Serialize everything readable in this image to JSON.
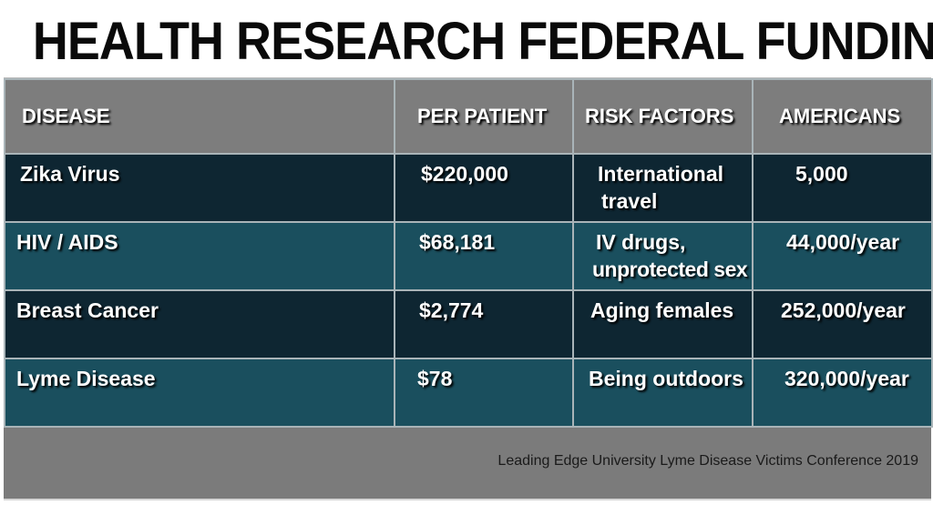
{
  "title": "HEALTH RESEARCH FEDERAL FUNDING",
  "table": {
    "headers": [
      "DISEASE",
      "PER PATIENT",
      "RISK FACTORS",
      "AMERICANS"
    ],
    "rows": [
      {
        "disease": "Zika Virus",
        "per_patient": "$220,000",
        "risk_line1": "International",
        "risk_line2": "travel",
        "americans": "5,000"
      },
      {
        "disease": "HIV / AIDS",
        "per_patient": "$68,181",
        "risk_line1": "IV drugs,",
        "risk_line2": "unprotected sex",
        "americans": "44,000/year"
      },
      {
        "disease": "Breast Cancer",
        "per_patient": "$2,774",
        "risk_line1": "Aging females",
        "risk_line2": "",
        "americans": "252,000/year"
      },
      {
        "disease": "Lyme Disease",
        "per_patient": "$78",
        "risk_line1": "Being outdoors",
        "risk_line2": "",
        "americans": "320,000/year"
      }
    ]
  },
  "footer": "Leading Edge University Lyme Disease Victims Conference 2019",
  "colors": {
    "row_dark": "#0e2632",
    "row_teal": "#1a4f5e",
    "header_gray": "#7d7d7d"
  }
}
